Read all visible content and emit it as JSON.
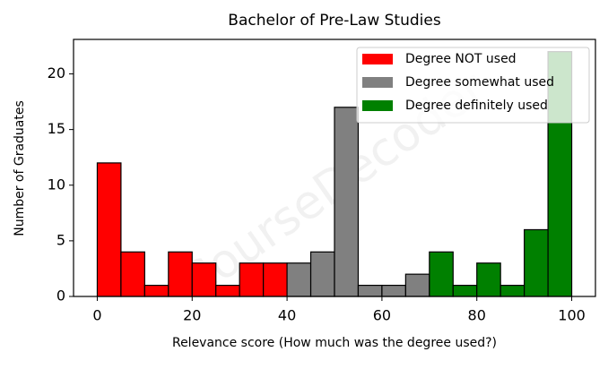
{
  "chart_data": {
    "type": "histogram",
    "title": "Bachelor of Pre-Law Studies",
    "x_label": "Relevance score (How much was the degree used?)",
    "y_label": "Number of Graduates",
    "watermark": "CourseDecoder",
    "series": [
      {
        "name": "Degree NOT used",
        "color": "#ff0000",
        "bins": [
          0,
          5,
          10,
          15,
          20,
          25,
          30,
          35,
          40
        ],
        "values": [
          12,
          4,
          1,
          4,
          3,
          1,
          3,
          3
        ]
      },
      {
        "name": "Degree somewhat used",
        "color": "#808080",
        "bins": [
          40,
          45,
          50,
          55,
          60,
          65,
          70
        ],
        "values": [
          3,
          4,
          17,
          1,
          1,
          2
        ]
      },
      {
        "name": "Degree definitely used",
        "color": "#008000",
        "bins": [
          70,
          75,
          80,
          85,
          90,
          95,
          100
        ],
        "values": [
          4,
          1,
          3,
          1,
          6,
          22
        ]
      }
    ],
    "xlim": [
      -5,
      105
    ],
    "xticks": [
      0,
      20,
      40,
      60,
      80,
      100
    ],
    "ylim": [
      0,
      23.1
    ],
    "yticks": [
      0,
      5,
      10,
      15,
      20
    ],
    "legend": "upper right"
  }
}
